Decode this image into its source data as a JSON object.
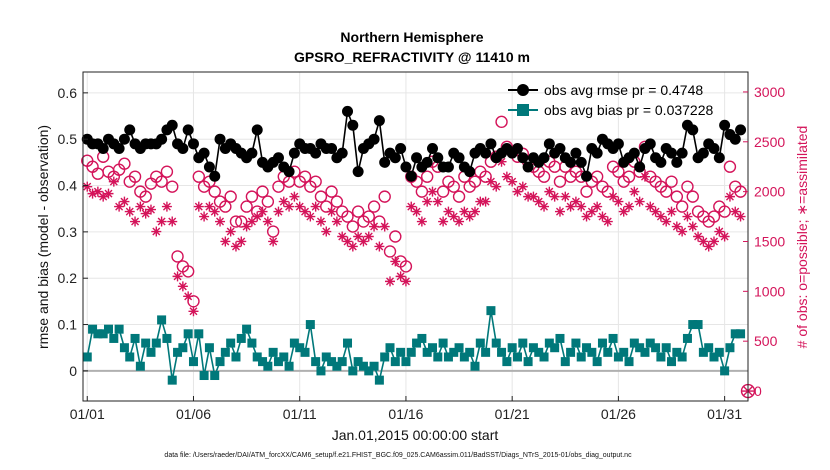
{
  "chart_data": {
    "type": "line",
    "title": "Northern Hemisphere",
    "subtitle": "GPSRO_REFRACTIVITY @ 11410 m",
    "xlabel": "Jan.01,2015 00:00:00 start",
    "ylabel_left": "rmse and bias (model - observation)",
    "ylabel_right": "# of obs: o=possible; ∗=assimilated",
    "footnote": "data file: /Users/raeder/DAI/ATM_forcXX/CAM6_setup/f.e21.FHIST_BGC.f09_025.CAM6assim.011/BadSST/Diags_NTrS_2015-01/obs_diag_output.nc",
    "xlim": [
      0.8,
      32.1
    ],
    "ylim_left": [
      -0.065,
      0.645
    ],
    "ylim_right": [
      -100,
      3200
    ],
    "x_ticks": [
      1,
      6,
      11,
      16,
      21,
      26,
      31
    ],
    "x_tick_labels": [
      "01/01",
      "01/06",
      "01/11",
      "01/16",
      "01/21",
      "01/26",
      "01/31"
    ],
    "y_left_ticks": [
      0,
      0.1,
      0.2,
      0.3,
      0.4,
      0.5,
      0.6
    ],
    "y_left_tick_labels": [
      "0",
      "0.1",
      "0.2",
      "0.3",
      "0.4",
      "0.5",
      "0.6"
    ],
    "y_right_ticks": [
      0,
      500,
      1000,
      1500,
      2000,
      2500,
      3000
    ],
    "y_right_tick_labels": [
      "0",
      "500",
      "1000",
      "1500",
      "2000",
      "2500",
      "3000"
    ],
    "legend_position": "top-right",
    "x": [
      1.0,
      1.25,
      1.5,
      1.75,
      2.0,
      2.25,
      2.5,
      2.75,
      3.0,
      3.25,
      3.5,
      3.75,
      4.0,
      4.25,
      4.5,
      4.75,
      5.0,
      5.25,
      5.5,
      5.75,
      6.0,
      6.25,
      6.5,
      6.75,
      7.0,
      7.25,
      7.5,
      7.75,
      8.0,
      8.25,
      8.5,
      8.75,
      9.0,
      9.25,
      9.5,
      9.75,
      10.0,
      10.25,
      10.5,
      10.75,
      11.0,
      11.25,
      11.5,
      11.75,
      12.0,
      12.25,
      12.5,
      12.75,
      13.0,
      13.25,
      13.5,
      13.75,
      14.0,
      14.25,
      14.5,
      14.75,
      15.0,
      15.25,
      15.5,
      15.75,
      16.0,
      16.25,
      16.5,
      16.75,
      17.0,
      17.25,
      17.5,
      17.75,
      18.0,
      18.25,
      18.5,
      18.75,
      19.0,
      19.25,
      19.5,
      19.75,
      20.0,
      20.25,
      20.5,
      20.75,
      21.0,
      21.25,
      21.5,
      21.75,
      22.0,
      22.25,
      22.5,
      22.75,
      23.0,
      23.25,
      23.5,
      23.75,
      24.0,
      24.25,
      24.5,
      24.75,
      25.0,
      25.25,
      25.5,
      25.75,
      26.0,
      26.25,
      26.5,
      26.75,
      27.0,
      27.25,
      27.5,
      27.75,
      28.0,
      28.25,
      28.5,
      28.75,
      29.0,
      29.25,
      29.5,
      29.75,
      30.0,
      30.25,
      30.5,
      30.75,
      31.0,
      31.25,
      31.5,
      31.75
    ],
    "series": [
      {
        "name": "obs avg rmse pr = 0.4748",
        "axis": "left",
        "color": "#000000",
        "marker": "filled-circle",
        "values": [
          0.5,
          0.49,
          0.49,
          0.48,
          0.5,
          0.49,
          0.48,
          0.5,
          0.52,
          0.49,
          0.48,
          0.49,
          0.49,
          0.49,
          0.5,
          0.52,
          0.53,
          0.49,
          0.48,
          0.52,
          0.49,
          0.46,
          0.47,
          0.44,
          0.42,
          0.5,
          0.48,
          0.49,
          0.48,
          0.47,
          0.46,
          0.47,
          0.52,
          0.45,
          0.44,
          0.45,
          0.46,
          0.44,
          0.43,
          0.47,
          0.49,
          0.48,
          0.48,
          0.47,
          0.49,
          0.48,
          0.48,
          0.46,
          0.47,
          0.56,
          0.53,
          0.43,
          0.48,
          0.49,
          0.5,
          0.54,
          0.45,
          0.47,
          0.46,
          0.48,
          0.44,
          0.42,
          0.46,
          0.44,
          0.45,
          0.48,
          0.46,
          0.44,
          0.44,
          0.47,
          0.46,
          0.44,
          0.43,
          0.47,
          0.48,
          0.47,
          0.49,
          0.46,
          0.47,
          0.48,
          0.47,
          0.48,
          0.46,
          0.44,
          0.46,
          0.45,
          0.46,
          0.49,
          0.47,
          0.48,
          0.46,
          0.45,
          0.47,
          0.45,
          0.42,
          0.48,
          0.47,
          0.5,
          0.49,
          0.48,
          0.49,
          0.45,
          0.46,
          0.47,
          0.44,
          0.48,
          0.49,
          0.46,
          0.45,
          0.48,
          0.47,
          0.45,
          0.47,
          0.53,
          0.52,
          0.46,
          0.47,
          0.49,
          0.48,
          0.46,
          0.53,
          0.51,
          0.5,
          0.52
        ]
      },
      {
        "name": "obs avg bias pr = 0.037228",
        "axis": "left",
        "color": "#00787a",
        "marker": "filled-square",
        "values": [
          0.03,
          0.09,
          0.08,
          0.08,
          0.09,
          0.07,
          0.09,
          0.05,
          0.03,
          0.07,
          0.01,
          0.06,
          0.04,
          0.06,
          0.11,
          0.07,
          -0.02,
          0.04,
          0.05,
          0.08,
          0.02,
          0.08,
          -0.01,
          0.05,
          -0.01,
          0.02,
          0.04,
          0.06,
          0.03,
          0.07,
          0.09,
          0.06,
          0.03,
          0.02,
          0.01,
          0.04,
          0.02,
          0.03,
          0.01,
          0.06,
          0.05,
          0.04,
          0.1,
          0.02,
          0.0,
          0.03,
          0.02,
          0.01,
          0.02,
          0.06,
          0.0,
          0.02,
          0.01,
          0.0,
          0.01,
          -0.02,
          0.03,
          0.05,
          0.02,
          0.04,
          0.02,
          0.04,
          0.06,
          0.07,
          0.04,
          0.05,
          0.03,
          0.06,
          0.03,
          0.04,
          0.05,
          0.03,
          0.04,
          0.01,
          0.06,
          0.04,
          0.13,
          0.06,
          0.04,
          0.02,
          0.05,
          0.03,
          0.06,
          0.02,
          0.05,
          0.04,
          0.03,
          0.06,
          0.05,
          0.07,
          0.02,
          0.04,
          0.06,
          0.03,
          0.05,
          0.04,
          0.02,
          0.06,
          0.04,
          0.07,
          0.03,
          0.04,
          0.02,
          0.06,
          0.05,
          0.04,
          0.06,
          0.05,
          0.03,
          0.05,
          0.02,
          0.04,
          0.03,
          0.07,
          0.1,
          0.1,
          0.04,
          0.05,
          0.03,
          0.04,
          0.0,
          0.05,
          0.08,
          0.08
        ]
      },
      {
        "name": "obs possible",
        "axis": "right",
        "color": "#d4145a",
        "marker": "open-circle",
        "values": [
          2310,
          2250,
          2180,
          2350,
          2200,
          2150,
          2220,
          2280,
          2100,
          2150,
          2000,
          1950,
          2080,
          2150,
          2100,
          2200,
          2050,
          1350,
          1250,
          1200,
          900,
          2150,
          2050,
          2100,
          2000,
          1900,
          1850,
          1950,
          1700,
          1700,
          1850,
          1950,
          1800,
          2000,
          1900,
          1600,
          2050,
          2150,
          2100,
          2200,
          2100,
          2150,
          2050,
          2100,
          1950,
          1850,
          2000,
          1900,
          1800,
          1750,
          1650,
          1800,
          1700,
          1750,
          1850,
          1700,
          1950,
          1400,
          1550,
          1300,
          1250,
          2150,
          2100,
          2000,
          2150,
          2300,
          2250,
          2000,
          2100,
          2050,
          1950,
          2150,
          2050,
          2100,
          2200,
          2150,
          2300,
          2350,
          2700,
          2450,
          2400,
          2350,
          2380,
          2300,
          2250,
          2200,
          2150,
          2300,
          2250,
          2100,
          2250,
          2150,
          2200,
          2150,
          2000,
          2100,
          2150,
          2050,
          2000,
          2250,
          2200,
          2100,
          2150,
          2300,
          2200,
          2450,
          2150,
          2100,
          2050,
          2000,
          2100,
          1950,
          1850,
          2050,
          1950,
          1800,
          1750,
          1700,
          1750,
          1850,
          1800,
          2250,
          2050,
          2000
        ]
      },
      {
        "name": "obs assimilated",
        "axis": "right",
        "color": "#d4145a",
        "marker": "asterisk",
        "values": [
          2050,
          1980,
          2000,
          1950,
          1980,
          2100,
          1850,
          1900,
          1800,
          1700,
          1850,
          1780,
          1820,
          1600,
          1700,
          1850,
          1700,
          1150,
          1050,
          950,
          800,
          1850,
          1750,
          1850,
          1800,
          1700,
          1500,
          1600,
          1450,
          1500,
          1650,
          1700,
          1750,
          1800,
          1700,
          1500,
          1800,
          1900,
          1850,
          1950,
          1850,
          1800,
          1750,
          1850,
          1700,
          1600,
          1800,
          1700,
          1550,
          1500,
          1450,
          1550,
          1500,
          1550,
          1650,
          1450,
          1650,
          1100,
          1300,
          1150,
          1100,
          1850,
          1800,
          1700,
          1900,
          2000,
          1900,
          1700,
          1800,
          1750,
          1700,
          1800,
          1750,
          1800,
          1900,
          1900,
          2100,
          2050,
          2300,
          2150,
          2100,
          2000,
          2050,
          1950,
          1950,
          1900,
          1850,
          2000,
          1950,
          1800,
          1950,
          1850,
          1900,
          1850,
          1750,
          1800,
          1850,
          1750,
          1700,
          1950,
          1900,
          1800,
          1850,
          2000,
          1900,
          2150,
          1850,
          1800,
          1750,
          1700,
          1800,
          1650,
          1600,
          1750,
          1650,
          1550,
          1500,
          1450,
          1500,
          1600,
          1550,
          1950,
          1800,
          1750
        ]
      }
    ]
  },
  "colors": {
    "rmse": "#000000",
    "bias": "#00787a",
    "counts": "#d4145a",
    "zero_line": "#b0b0b0"
  }
}
